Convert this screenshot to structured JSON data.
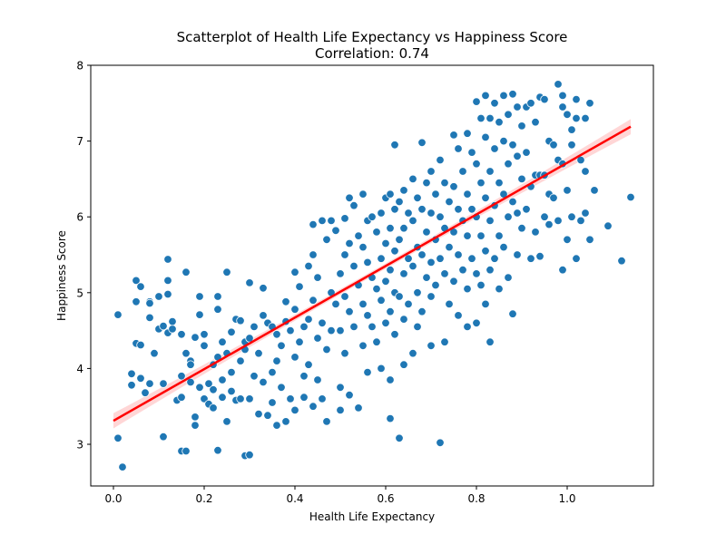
{
  "chart_data": {
    "type": "scatter",
    "title": "Scatterplot of Health Life Expectancy vs Happiness Score",
    "subtitle": "Correlation: 0.74",
    "xlabel": "Health Life Expectancy",
    "ylabel": "Happiness Score",
    "xlim": [
      -0.05,
      1.19
    ],
    "ylim": [
      2.45,
      8.0
    ],
    "xticks": [
      0.0,
      0.2,
      0.4,
      0.6,
      0.8,
      1.0
    ],
    "xtick_labels": [
      "0.0",
      "0.2",
      "0.4",
      "0.6",
      "0.8",
      "1.0"
    ],
    "yticks": [
      3,
      4,
      5,
      6,
      7,
      8
    ],
    "ytick_labels": [
      "3",
      "4",
      "5",
      "6",
      "7",
      "8"
    ],
    "grid": false,
    "colors": {
      "points": "#1f77b4",
      "point_edge": "#ffffff",
      "regression_line": "#ff0000",
      "confidence_band": "#ffcccc"
    },
    "regression": {
      "x": [
        0.0,
        1.14
      ],
      "y": [
        3.31,
        7.19
      ],
      "band_halfwidth_ends": 0.1,
      "band_halfwidth_mid": 0.035
    },
    "points": [
      [
        0.01,
        4.71
      ],
      [
        0.01,
        3.08
      ],
      [
        0.02,
        2.7
      ],
      [
        0.04,
        3.78
      ],
      [
        0.04,
        3.93
      ],
      [
        0.05,
        5.16
      ],
      [
        0.05,
        4.33
      ],
      [
        0.06,
        4.31
      ],
      [
        0.05,
        4.88
      ],
      [
        0.06,
        5.08
      ],
      [
        0.06,
        3.87
      ],
      [
        0.07,
        3.68
      ],
      [
        0.08,
        4.88
      ],
      [
        0.08,
        4.86
      ],
      [
        0.08,
        4.67
      ],
      [
        0.08,
        3.8
      ],
      [
        0.09,
        4.2
      ],
      [
        0.1,
        4.95
      ],
      [
        0.1,
        4.52
      ],
      [
        0.11,
        4.56
      ],
      [
        0.11,
        3.8
      ],
      [
        0.11,
        3.1
      ],
      [
        0.12,
        5.44
      ],
      [
        0.12,
        4.98
      ],
      [
        0.12,
        5.16
      ],
      [
        0.12,
        4.47
      ],
      [
        0.13,
        4.52
      ],
      [
        0.13,
        4.62
      ],
      [
        0.14,
        3.58
      ],
      [
        0.15,
        4.45
      ],
      [
        0.15,
        3.9
      ],
      [
        0.15,
        3.62
      ],
      [
        0.15,
        2.91
      ],
      [
        0.16,
        5.27
      ],
      [
        0.16,
        4.2
      ],
      [
        0.17,
        4.1
      ],
      [
        0.16,
        2.91
      ],
      [
        0.17,
        4.05
      ],
      [
        0.17,
        3.82
      ],
      [
        0.18,
        3.36
      ],
      [
        0.18,
        3.25
      ],
      [
        0.18,
        4.41
      ],
      [
        0.19,
        4.95
      ],
      [
        0.19,
        4.71
      ],
      [
        0.19,
        3.75
      ],
      [
        0.2,
        4.3
      ],
      [
        0.2,
        4.45
      ],
      [
        0.2,
        3.6
      ],
      [
        0.21,
        3.53
      ],
      [
        0.21,
        3.8
      ],
      [
        0.22,
        4.05
      ],
      [
        0.22,
        3.72
      ],
      [
        0.22,
        3.48
      ],
      [
        0.23,
        4.15
      ],
      [
        0.23,
        2.92
      ],
      [
        0.23,
        4.95
      ],
      [
        0.23,
        4.78
      ],
      [
        0.24,
        4.35
      ],
      [
        0.24,
        3.62
      ],
      [
        0.24,
        3.85
      ],
      [
        0.25,
        5.27
      ],
      [
        0.25,
        4.2
      ],
      [
        0.25,
        3.3
      ],
      [
        0.26,
        3.95
      ],
      [
        0.26,
        4.48
      ],
      [
        0.26,
        3.7
      ],
      [
        0.27,
        4.65
      ],
      [
        0.27,
        3.58
      ],
      [
        0.28,
        4.1
      ],
      [
        0.28,
        3.6
      ],
      [
        0.28,
        4.63
      ],
      [
        0.29,
        4.25
      ],
      [
        0.29,
        2.85
      ],
      [
        0.29,
        4.35
      ],
      [
        0.3,
        2.86
      ],
      [
        0.3,
        3.6
      ],
      [
        0.3,
        4.4
      ],
      [
        0.3,
        5.13
      ],
      [
        0.31,
        3.9
      ],
      [
        0.31,
        4.55
      ],
      [
        0.32,
        4.2
      ],
      [
        0.32,
        3.4
      ],
      [
        0.33,
        5.06
      ],
      [
        0.33,
        4.7
      ],
      [
        0.33,
        3.82
      ],
      [
        0.34,
        4.6
      ],
      [
        0.34,
        3.38
      ],
      [
        0.35,
        4.55
      ],
      [
        0.35,
        3.95
      ],
      [
        0.35,
        3.55
      ],
      [
        0.36,
        4.1
      ],
      [
        0.36,
        4.45
      ],
      [
        0.36,
        3.25
      ],
      [
        0.37,
        4.3
      ],
      [
        0.37,
        3.75
      ],
      [
        0.38,
        4.88
      ],
      [
        0.38,
        4.62
      ],
      [
        0.38,
        3.3
      ],
      [
        0.39,
        4.5
      ],
      [
        0.39,
        3.6
      ],
      [
        0.4,
        5.27
      ],
      [
        0.4,
        4.78
      ],
      [
        0.4,
        4.15
      ],
      [
        0.4,
        3.45
      ],
      [
        0.41,
        5.08
      ],
      [
        0.41,
        4.35
      ],
      [
        0.42,
        4.55
      ],
      [
        0.42,
        3.9
      ],
      [
        0.42,
        3.62
      ],
      [
        0.43,
        5.35
      ],
      [
        0.43,
        4.65
      ],
      [
        0.43,
        4.05
      ],
      [
        0.44,
        5.9
      ],
      [
        0.44,
        5.5
      ],
      [
        0.44,
        4.9
      ],
      [
        0.44,
        3.5
      ],
      [
        0.45,
        5.2
      ],
      [
        0.45,
        4.4
      ],
      [
        0.45,
        3.85
      ],
      [
        0.46,
        5.95
      ],
      [
        0.46,
        4.6
      ],
      [
        0.46,
        3.6
      ],
      [
        0.47,
        5.7
      ],
      [
        0.47,
        4.25
      ],
      [
        0.47,
        3.3
      ],
      [
        0.48,
        5.95
      ],
      [
        0.48,
        5.0
      ],
      [
        0.48,
        4.5
      ],
      [
        0.49,
        5.82
      ],
      [
        0.49,
        4.85
      ],
      [
        0.5,
        5.25
      ],
      [
        0.5,
        4.5
      ],
      [
        0.5,
        3.75
      ],
      [
        0.5,
        3.45
      ],
      [
        0.51,
        5.98
      ],
      [
        0.51,
        5.5
      ],
      [
        0.51,
        4.95
      ],
      [
        0.51,
        4.2
      ],
      [
        0.52,
        6.25
      ],
      [
        0.52,
        5.65
      ],
      [
        0.52,
        4.75
      ],
      [
        0.52,
        3.65
      ],
      [
        0.53,
        6.15
      ],
      [
        0.53,
        5.35
      ],
      [
        0.53,
        4.55
      ],
      [
        0.54,
        5.75
      ],
      [
        0.54,
        5.1
      ],
      [
        0.54,
        3.48
      ],
      [
        0.55,
        6.3
      ],
      [
        0.55,
        5.6
      ],
      [
        0.55,
        4.85
      ],
      [
        0.55,
        4.3
      ],
      [
        0.56,
        5.95
      ],
      [
        0.56,
        5.4
      ],
      [
        0.56,
        4.7
      ],
      [
        0.56,
        3.95
      ],
      [
        0.57,
        6.0
      ],
      [
        0.57,
        5.2
      ],
      [
        0.57,
        4.55
      ],
      [
        0.58,
        5.8
      ],
      [
        0.58,
        5.05
      ],
      [
        0.58,
        4.35
      ],
      [
        0.59,
        6.05
      ],
      [
        0.59,
        5.45
      ],
      [
        0.59,
        4.9
      ],
      [
        0.59,
        4.0
      ],
      [
        0.6,
        6.25
      ],
      [
        0.6,
        5.65
      ],
      [
        0.6,
        5.15
      ],
      [
        0.6,
        4.6
      ],
      [
        0.61,
        6.3
      ],
      [
        0.61,
        5.85
      ],
      [
        0.61,
        5.3
      ],
      [
        0.61,
        4.75
      ],
      [
        0.61,
        3.85
      ],
      [
        0.61,
        3.34
      ],
      [
        0.62,
        6.95
      ],
      [
        0.62,
        6.1
      ],
      [
        0.62,
        5.55
      ],
      [
        0.62,
        5.0
      ],
      [
        0.62,
        4.45
      ],
      [
        0.63,
        6.2
      ],
      [
        0.63,
        5.7
      ],
      [
        0.63,
        4.95
      ],
      [
        0.63,
        3.08
      ],
      [
        0.64,
        6.35
      ],
      [
        0.64,
        5.85
      ],
      [
        0.64,
        5.25
      ],
      [
        0.64,
        4.65
      ],
      [
        0.64,
        4.05
      ],
      [
        0.65,
        6.05
      ],
      [
        0.65,
        5.45
      ],
      [
        0.65,
        4.85
      ],
      [
        0.66,
        6.5
      ],
      [
        0.66,
        5.95
      ],
      [
        0.66,
        5.35
      ],
      [
        0.66,
        4.2
      ],
      [
        0.67,
        6.25
      ],
      [
        0.67,
        5.6
      ],
      [
        0.67,
        5.0
      ],
      [
        0.67,
        4.55
      ],
      [
        0.68,
        6.98
      ],
      [
        0.68,
        6.1
      ],
      [
        0.68,
        5.5
      ],
      [
        0.68,
        4.75
      ],
      [
        0.69,
        6.45
      ],
      [
        0.69,
        5.8
      ],
      [
        0.69,
        5.2
      ],
      [
        0.7,
        6.6
      ],
      [
        0.7,
        6.05
      ],
      [
        0.7,
        5.4
      ],
      [
        0.7,
        4.95
      ],
      [
        0.7,
        4.3
      ],
      [
        0.71,
        6.3
      ],
      [
        0.71,
        5.7
      ],
      [
        0.71,
        5.1
      ],
      [
        0.72,
        6.75
      ],
      [
        0.72,
        6.0
      ],
      [
        0.72,
        5.45
      ],
      [
        0.72,
        3.02
      ],
      [
        0.73,
        6.45
      ],
      [
        0.73,
        5.85
      ],
      [
        0.73,
        5.25
      ],
      [
        0.73,
        4.35
      ],
      [
        0.74,
        6.2
      ],
      [
        0.74,
        5.6
      ],
      [
        0.74,
        4.85
      ],
      [
        0.75,
        7.08
      ],
      [
        0.75,
        6.4
      ],
      [
        0.75,
        5.8
      ],
      [
        0.75,
        5.15
      ],
      [
        0.76,
        6.9
      ],
      [
        0.76,
        6.1
      ],
      [
        0.76,
        5.5
      ],
      [
        0.76,
        4.7
      ],
      [
        0.77,
        6.6
      ],
      [
        0.77,
        5.95
      ],
      [
        0.77,
        5.3
      ],
      [
        0.78,
        7.1
      ],
      [
        0.78,
        6.3
      ],
      [
        0.78,
        5.75
      ],
      [
        0.78,
        5.05
      ],
      [
        0.78,
        4.55
      ],
      [
        0.79,
        6.85
      ],
      [
        0.79,
        6.1
      ],
      [
        0.79,
        5.45
      ],
      [
        0.8,
        7.52
      ],
      [
        0.8,
        6.7
      ],
      [
        0.8,
        6.0
      ],
      [
        0.8,
        5.25
      ],
      [
        0.8,
        4.6
      ],
      [
        0.81,
        7.3
      ],
      [
        0.81,
        6.45
      ],
      [
        0.81,
        5.75
      ],
      [
        0.81,
        5.1
      ],
      [
        0.82,
        7.6
      ],
      [
        0.82,
        7.05
      ],
      [
        0.82,
        6.25
      ],
      [
        0.82,
        5.55
      ],
      [
        0.82,
        4.85
      ],
      [
        0.83,
        7.3
      ],
      [
        0.83,
        6.6
      ],
      [
        0.83,
        5.95
      ],
      [
        0.83,
        5.3
      ],
      [
        0.83,
        4.35
      ],
      [
        0.84,
        7.5
      ],
      [
        0.84,
        6.9
      ],
      [
        0.84,
        6.15
      ],
      [
        0.84,
        5.45
      ],
      [
        0.85,
        7.25
      ],
      [
        0.85,
        6.45
      ],
      [
        0.85,
        5.75
      ],
      [
        0.85,
        5.05
      ],
      [
        0.86,
        7.6
      ],
      [
        0.86,
        7.0
      ],
      [
        0.86,
        6.3
      ],
      [
        0.86,
        5.6
      ],
      [
        0.87,
        7.35
      ],
      [
        0.87,
        6.7
      ],
      [
        0.87,
        6.0
      ],
      [
        0.87,
        5.2
      ],
      [
        0.88,
        7.62
      ],
      [
        0.88,
        6.95
      ],
      [
        0.88,
        6.2
      ],
      [
        0.88,
        4.72
      ],
      [
        0.89,
        7.45
      ],
      [
        0.89,
        6.8
      ],
      [
        0.89,
        6.05
      ],
      [
        0.89,
        5.5
      ],
      [
        0.9,
        7.2
      ],
      [
        0.9,
        6.5
      ],
      [
        0.9,
        5.85
      ],
      [
        0.91,
        7.45
      ],
      [
        0.91,
        6.85
      ],
      [
        0.91,
        6.1
      ],
      [
        0.92,
        7.5
      ],
      [
        0.92,
        6.4
      ],
      [
        0.92,
        5.45
      ],
      [
        0.93,
        7.25
      ],
      [
        0.93,
        6.55
      ],
      [
        0.93,
        5.8
      ],
      [
        0.94,
        7.58
      ],
      [
        0.94,
        6.55
      ],
      [
        0.94,
        5.48
      ],
      [
        0.95,
        7.55
      ],
      [
        0.95,
        6.55
      ],
      [
        0.95,
        6.0
      ],
      [
        0.96,
        7.0
      ],
      [
        0.96,
        6.3
      ],
      [
        0.96,
        5.9
      ],
      [
        0.97,
        6.95
      ],
      [
        0.97,
        6.25
      ],
      [
        0.98,
        7.75
      ],
      [
        0.98,
        6.75
      ],
      [
        0.98,
        5.95
      ],
      [
        0.99,
        7.6
      ],
      [
        0.99,
        7.45
      ],
      [
        0.99,
        6.7
      ],
      [
        0.99,
        5.3
      ],
      [
        1.0,
        7.35
      ],
      [
        1.0,
        6.35
      ],
      [
        1.0,
        5.7
      ],
      [
        1.01,
        7.15
      ],
      [
        1.01,
        6.95
      ],
      [
        1.01,
        6.0
      ],
      [
        1.02,
        7.55
      ],
      [
        1.02,
        7.3
      ],
      [
        1.02,
        5.45
      ],
      [
        1.03,
        6.75
      ],
      [
        1.03,
        5.95
      ],
      [
        1.04,
        7.3
      ],
      [
        1.04,
        6.6
      ],
      [
        1.04,
        6.05
      ],
      [
        1.05,
        7.5
      ],
      [
        1.05,
        5.7
      ],
      [
        1.06,
        6.35
      ],
      [
        1.09,
        5.88
      ],
      [
        1.12,
        5.42
      ],
      [
        1.14,
        6.26
      ]
    ]
  }
}
